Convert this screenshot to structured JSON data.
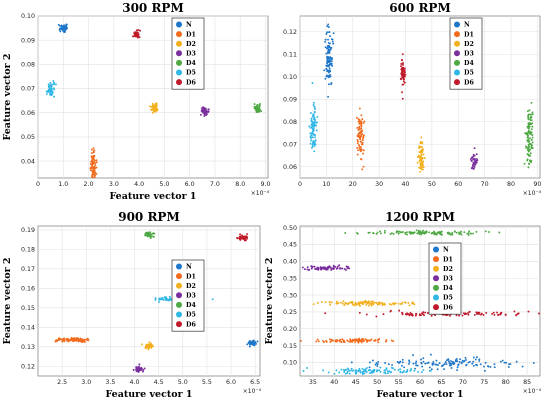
{
  "colors": {
    "N": "#1f77c9",
    "D1": "#f26b1d",
    "D2": "#f2b01e",
    "D3": "#7b2f9e",
    "D4": "#4ea843",
    "D5": "#2fb7e6",
    "D6": "#c01b2a",
    "grid": "#e2e2e2",
    "axis": "#888888"
  },
  "legend_labels": [
    "N",
    "D1",
    "D2",
    "D3",
    "D4",
    "D5",
    "D6"
  ],
  "chart_data": [
    {
      "type": "scatter",
      "title": "300 RPM",
      "xlabel": "Feature vector 1",
      "ylabel": "Feature vector 2",
      "x_multiplier": "×10⁻⁴",
      "xlim": [
        0,
        9.1
      ],
      "ylim": [
        0.033,
        0.1
      ],
      "xticks": [
        "0",
        "1.0",
        "2.0",
        "3.0",
        "4.0",
        "5.0",
        "6.0",
        "7.0",
        "8.0",
        "9.0"
      ],
      "xtick_values": [
        0,
        1,
        2,
        3,
        4,
        5,
        6,
        7,
        8,
        9
      ],
      "yticks": [
        "0.04",
        "0.05",
        "0.06",
        "0.07",
        "0.08",
        "0.09",
        "0.10"
      ],
      "ytick_values": [
        0.04,
        0.05,
        0.06,
        0.07,
        0.08,
        0.09,
        0.1
      ],
      "grid": true,
      "legend": "top-center",
      "series": [
        {
          "name": "N",
          "x_center": 1.0,
          "x_spread": 0.08,
          "y_center": 0.095,
          "y_spread": 0.0007,
          "points": 55
        },
        {
          "name": "D1",
          "x_center": 2.2,
          "x_spread": 0.06,
          "y_center": 0.038,
          "y_spread": 0.003,
          "points": 80
        },
        {
          "name": "D2",
          "x_center": 4.6,
          "x_spread": 0.07,
          "y_center": 0.062,
          "y_spread": 0.0008,
          "points": 50
        },
        {
          "name": "D3",
          "x_center": 6.6,
          "x_spread": 0.07,
          "y_center": 0.0605,
          "y_spread": 0.0008,
          "points": 50
        },
        {
          "name": "D4",
          "x_center": 8.7,
          "x_spread": 0.07,
          "y_center": 0.0617,
          "y_spread": 0.0008,
          "points": 50
        },
        {
          "name": "D5",
          "x_center": 0.5,
          "x_spread": 0.07,
          "y_center": 0.0695,
          "y_spread": 0.0015,
          "points": 60
        },
        {
          "name": "D6",
          "x_center": 3.9,
          "x_spread": 0.06,
          "y_center": 0.0925,
          "y_spread": 0.0007,
          "points": 40
        }
      ]
    },
    {
      "type": "scatter",
      "title": "600 RPM",
      "xlabel": "",
      "ylabel": "",
      "x_multiplier": "×10⁻⁴",
      "xlim": [
        0,
        91
      ],
      "ylim": [
        0.055,
        0.127
      ],
      "xticks": [
        "0",
        "10",
        "20",
        "30",
        "40",
        "50",
        "60",
        "70",
        "80",
        "90"
      ],
      "xtick_values": [
        0,
        10,
        20,
        30,
        40,
        50,
        60,
        70,
        80,
        90
      ],
      "yticks": [
        "0.06",
        "0.07",
        "0.08",
        "0.09",
        "0.10",
        "0.11",
        "0.12"
      ],
      "ytick_values": [
        0.06,
        0.07,
        0.08,
        0.09,
        0.1,
        0.11,
        0.12
      ],
      "grid": true,
      "legend": "top-center",
      "series": [
        {
          "name": "N",
          "x_center": 11,
          "x_spread": 0.6,
          "y_center": 0.108,
          "y_spread": 0.007,
          "points": 110
        },
        {
          "name": "D1",
          "x_center": 23,
          "x_spread": 0.6,
          "y_center": 0.074,
          "y_spread": 0.005,
          "points": 90
        },
        {
          "name": "D2",
          "x_center": 46,
          "x_spread": 0.6,
          "y_center": 0.064,
          "y_spread": 0.004,
          "points": 70
        },
        {
          "name": "D3",
          "x_center": 66,
          "x_spread": 0.6,
          "y_center": 0.0625,
          "y_spread": 0.002,
          "points": 40
        },
        {
          "name": "D4",
          "x_center": 87,
          "x_spread": 0.6,
          "y_center": 0.072,
          "y_spread": 0.007,
          "points": 110
        },
        {
          "name": "D5",
          "x_center": 5,
          "x_spread": 0.6,
          "y_center": 0.077,
          "y_spread": 0.005,
          "points": 90
        },
        {
          "name": "D6",
          "x_center": 39,
          "x_spread": 0.5,
          "y_center": 0.102,
          "y_spread": 0.003,
          "points": 60
        }
      ]
    },
    {
      "type": "scatter",
      "title": "900 RPM",
      "xlabel": "Feature vector 1",
      "ylabel": "Feature vector 2",
      "x_multiplier": "×10⁻⁴",
      "xlim": [
        2.0,
        6.6
      ],
      "ylim": [
        0.115,
        0.192
      ],
      "xticks": [
        "2.5",
        "3.0",
        "3.5",
        "4.0",
        "4.5",
        "5.0",
        "5.5",
        "6.0",
        "6.5"
      ],
      "xtick_values": [
        2.5,
        3.0,
        3.5,
        4.0,
        4.5,
        5.0,
        5.5,
        6.0,
        6.5
      ],
      "yticks": [
        "0.12",
        "0.13",
        "0.14",
        "0.15",
        "0.16",
        "0.17",
        "0.18",
        "0.19"
      ],
      "ytick_values": [
        0.12,
        0.13,
        0.14,
        0.15,
        0.16,
        0.17,
        0.18,
        0.19
      ],
      "grid": true,
      "legend": "top-center",
      "series": [
        {
          "name": "N",
          "x_center": 6.45,
          "x_spread": 0.05,
          "y_center": 0.132,
          "y_spread": 0.0007,
          "points": 40
        },
        {
          "name": "D1",
          "x_center": 2.7,
          "x_spread": 0.18,
          "y_center": 0.1335,
          "y_spread": 0.0006,
          "points": 90
        },
        {
          "name": "D2",
          "x_center": 4.3,
          "x_spread": 0.05,
          "y_center": 0.1305,
          "y_spread": 0.0007,
          "points": 40
        },
        {
          "name": "D3",
          "x_center": 4.1,
          "x_spread": 0.05,
          "y_center": 0.1185,
          "y_spread": 0.0007,
          "points": 40
        },
        {
          "name": "D4",
          "x_center": 4.3,
          "x_spread": 0.05,
          "y_center": 0.1875,
          "y_spread": 0.0007,
          "points": 40
        },
        {
          "name": "D5",
          "x_center": 4.9,
          "x_spread": 0.22,
          "y_center": 0.1545,
          "y_spread": 0.0006,
          "points": 90
        },
        {
          "name": "D6",
          "x_center": 6.25,
          "x_spread": 0.05,
          "y_center": 0.186,
          "y_spread": 0.0007,
          "points": 40
        }
      ]
    },
    {
      "type": "scatter",
      "title": "1200 RPM",
      "xlabel": "Feature vector 1",
      "ylabel": "Feature vector 2",
      "x_multiplier": "×10⁻⁴",
      "xlim": [
        32,
        88
      ],
      "ylim": [
        0.06,
        0.505
      ],
      "xticks": [
        "35",
        "40",
        "45",
        "50",
        "55",
        "60",
        "65",
        "70",
        "75",
        "80",
        "85"
      ],
      "xtick_values": [
        35,
        40,
        45,
        50,
        55,
        60,
        65,
        70,
        75,
        80,
        85
      ],
      "yticks": [
        "0.10",
        "0.15",
        "0.20",
        "0.25",
        "0.30",
        "0.35",
        "0.40",
        "0.45",
        "0.50"
      ],
      "ytick_values": [
        0.1,
        0.15,
        0.2,
        0.25,
        0.3,
        0.35,
        0.4,
        0.45,
        0.5
      ],
      "grid": true,
      "legend": "top-center",
      "series": [
        {
          "name": "N",
          "x_center": 66,
          "x_spread": 9,
          "y_center": 0.098,
          "y_spread": 0.008,
          "points": 130
        },
        {
          "name": "D1",
          "x_center": 44,
          "x_spread": 4,
          "y_center": 0.165,
          "y_spread": 0.003,
          "points": 90
        },
        {
          "name": "D2",
          "x_center": 48,
          "x_spread": 6,
          "y_center": 0.275,
          "y_spread": 0.003,
          "points": 110
        },
        {
          "name": "D3",
          "x_center": 38,
          "x_spread": 3,
          "y_center": 0.38,
          "y_spread": 0.003,
          "points": 80
        },
        {
          "name": "D4",
          "x_center": 61,
          "x_spread": 7,
          "y_center": 0.485,
          "y_spread": 0.003,
          "points": 120
        },
        {
          "name": "D5",
          "x_center": 49,
          "x_spread": 6,
          "y_center": 0.075,
          "y_spread": 0.004,
          "points": 110
        },
        {
          "name": "D6",
          "x_center": 66,
          "x_spread": 8,
          "y_center": 0.245,
          "y_spread": 0.003,
          "points": 120
        }
      ]
    }
  ]
}
